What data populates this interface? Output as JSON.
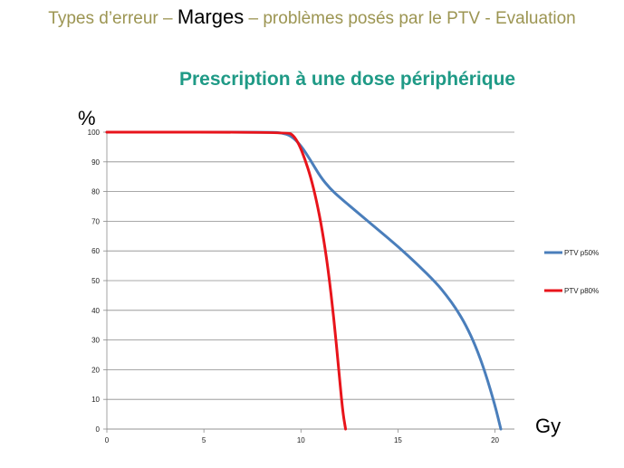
{
  "header": {
    "prefix": "Types d’erreur – ",
    "highlight": "Marges",
    "suffix": " – problèmes posés par le PTV - Evaluation"
  },
  "subtitle": "Prescription à une dose périphérique",
  "colors": {
    "header_text": "#9c9552",
    "subtitle_text": "#1f9a86",
    "series_p50": "#4a7ebb",
    "series_p80": "#e8141b",
    "gridline": "#8c8c8c"
  },
  "chart_data": {
    "type": "line",
    "title": "",
    "xlabel": "Gy",
    "ylabel": "%",
    "xlim": [
      0,
      21
    ],
    "ylim": [
      0,
      100
    ],
    "x_ticks": [
      0,
      5,
      10,
      15,
      20
    ],
    "y_ticks": [
      0,
      10,
      20,
      30,
      40,
      50,
      60,
      70,
      80,
      90,
      100
    ],
    "grid": "horizontal",
    "legend_position": "right",
    "series": [
      {
        "name": "PTV p50%",
        "color": "#4a7ebb",
        "points": [
          [
            0,
            100
          ],
          [
            8.5,
            100
          ],
          [
            9.0,
            99.8
          ],
          [
            9.5,
            98.8
          ],
          [
            10.0,
            95.5
          ],
          [
            10.5,
            90.5
          ],
          [
            11.0,
            85
          ],
          [
            11.5,
            81
          ],
          [
            12.0,
            78
          ],
          [
            13.0,
            72.5
          ],
          [
            14.0,
            67
          ],
          [
            15.0,
            61.5
          ],
          [
            16.0,
            55.5
          ],
          [
            17.0,
            49
          ],
          [
            17.5,
            45
          ],
          [
            18.0,
            40.5
          ],
          [
            18.5,
            35
          ],
          [
            19.0,
            28
          ],
          [
            19.5,
            19
          ],
          [
            20.0,
            8
          ],
          [
            20.3,
            0
          ]
        ]
      },
      {
        "name": "PTV p80%",
        "color": "#e8141b",
        "points": [
          [
            0,
            100
          ],
          [
            9.3,
            100
          ],
          [
            9.6,
            99
          ],
          [
            9.9,
            96
          ],
          [
            10.2,
            91
          ],
          [
            10.5,
            85
          ],
          [
            10.8,
            77
          ],
          [
            11.1,
            67
          ],
          [
            11.4,
            54
          ],
          [
            11.7,
            37
          ],
          [
            11.95,
            20
          ],
          [
            12.15,
            6
          ],
          [
            12.3,
            0
          ]
        ]
      }
    ]
  }
}
